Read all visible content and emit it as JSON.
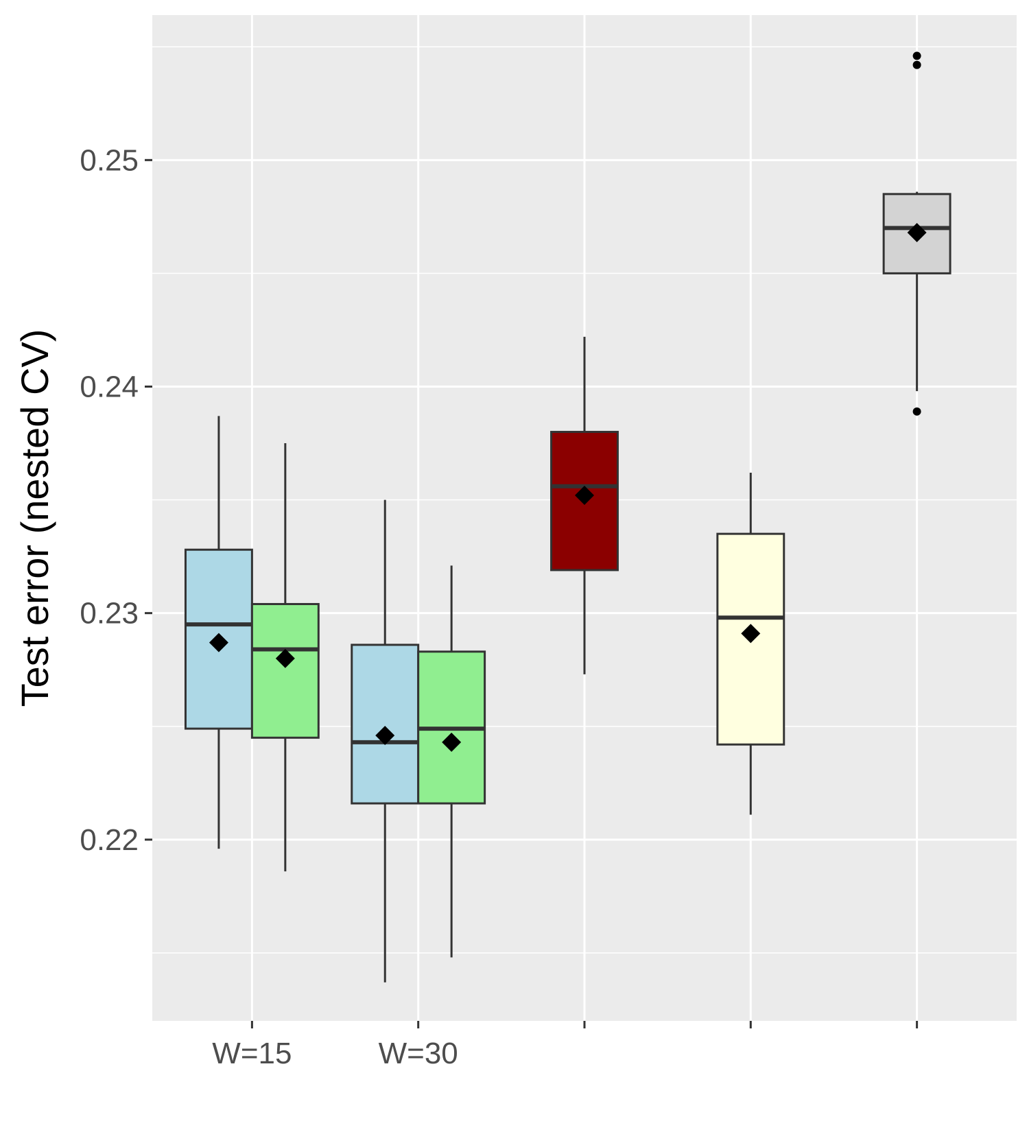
{
  "chart_data": {
    "type": "boxplot",
    "ylabel": "Test error (nested CV)",
    "xlabel": "",
    "title": "",
    "ylim": [
      0.212,
      0.2564
    ],
    "y_ticks": [
      0.22,
      0.23,
      0.24,
      0.25
    ],
    "y_tick_labels": [
      "0.22",
      "0.23",
      "0.24",
      "0.25"
    ],
    "x_categories": [
      "W=15",
      "W=30",
      "",
      "",
      ""
    ],
    "grid": true,
    "legend": "none",
    "panel_background": "#ebebeb",
    "grid_color": "#ffffff",
    "box_outline_color": "#333333",
    "mean_marker": "diamond",
    "boxes": [
      {
        "category_index": 0,
        "offset": -0.2,
        "fill": "#add8e6",
        "whisker_low": 0.2196,
        "q1": 0.2249,
        "median": 0.2295,
        "q3": 0.2328,
        "whisker_high": 0.2387,
        "mean": 0.2287,
        "outliers": []
      },
      {
        "category_index": 0,
        "offset": 0.2,
        "fill": "#90ee90",
        "whisker_low": 0.2186,
        "q1": 0.2245,
        "median": 0.2284,
        "q3": 0.2304,
        "whisker_high": 0.2375,
        "mean": 0.228,
        "outliers": []
      },
      {
        "category_index": 1,
        "offset": -0.2,
        "fill": "#add8e6",
        "whisker_low": 0.2137,
        "q1": 0.2216,
        "median": 0.2243,
        "q3": 0.2286,
        "whisker_high": 0.235,
        "mean": 0.2246,
        "outliers": []
      },
      {
        "category_index": 1,
        "offset": 0.2,
        "fill": "#90ee90",
        "whisker_low": 0.2148,
        "q1": 0.2216,
        "median": 0.2249,
        "q3": 0.2283,
        "whisker_high": 0.2321,
        "mean": 0.2243,
        "outliers": []
      },
      {
        "category_index": 2,
        "offset": 0,
        "fill": "#8b0000",
        "whisker_low": 0.2273,
        "q1": 0.2319,
        "median": 0.2356,
        "q3": 0.238,
        "whisker_high": 0.2422,
        "mean": 0.2352,
        "outliers": []
      },
      {
        "category_index": 3,
        "offset": 0,
        "fill": "#ffffe0",
        "whisker_low": 0.2211,
        "q1": 0.2242,
        "median": 0.2298,
        "q3": 0.2335,
        "whisker_high": 0.2362,
        "mean": 0.2291,
        "outliers": []
      },
      {
        "category_index": 4,
        "offset": 0,
        "fill": "#d3d3d3",
        "whisker_low": 0.2398,
        "q1": 0.245,
        "median": 0.247,
        "q3": 0.2485,
        "whisker_high": 0.2486,
        "mean": 0.2468,
        "outliers": [
          0.2389,
          0.2542,
          0.2546
        ]
      }
    ]
  }
}
